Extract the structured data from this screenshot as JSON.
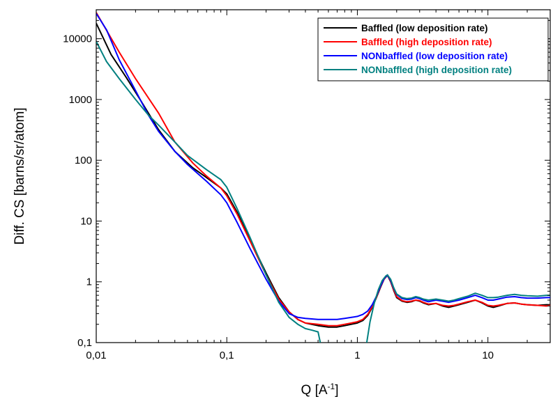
{
  "chart_data": {
    "type": "line",
    "title": "",
    "xlabel": "Q [A",
    "xlabel_sup": "-1",
    "xlabel_close": "]",
    "ylabel": "Diff. CS [barns/sr/atom]",
    "xscale": "log",
    "yscale": "log",
    "xlim": [
      0.01,
      30
    ],
    "ylim": [
      0.1,
      30000
    ],
    "grid": false,
    "legend_position": "top-right",
    "x_ticks": [
      {
        "value": 0.01,
        "label": "0,01"
      },
      {
        "value": 0.1,
        "label": "0,1"
      },
      {
        "value": 1,
        "label": "1"
      },
      {
        "value": 10,
        "label": "10"
      }
    ],
    "y_ticks": [
      {
        "value": 0.1,
        "label": "0,1"
      },
      {
        "value": 1,
        "label": "1"
      },
      {
        "value": 10,
        "label": "10"
      },
      {
        "value": 100,
        "label": "100"
      },
      {
        "value": 1000,
        "label": "1000"
      },
      {
        "value": 10000,
        "label": "10000"
      }
    ],
    "series": [
      {
        "name": "Baffled (low deposition rate)",
        "color": "#000000",
        "x": [
          0.01,
          0.013,
          0.017,
          0.022,
          0.03,
          0.04,
          0.055,
          0.07,
          0.09,
          0.1,
          0.12,
          0.15,
          0.2,
          0.25,
          0.3,
          0.35,
          0.4,
          0.5,
          0.6,
          0.7,
          0.8,
          0.9,
          1.0,
          1.1,
          1.2,
          1.3,
          1.4,
          1.5,
          1.6,
          1.7,
          1.8,
          1.9,
          2.0,
          2.2,
          2.4,
          2.6,
          2.8,
          3.0,
          3.2,
          3.5,
          4.0,
          4.5,
          5.0,
          5.5,
          6.0,
          7.0,
          8.0,
          9.0,
          10,
          11,
          12,
          14,
          16,
          18,
          20,
          24,
          28,
          30
        ],
        "y": [
          18000,
          5500,
          2300,
          950,
          320,
          140,
          75,
          52,
          35,
          28,
          14,
          5,
          1.4,
          0.55,
          0.32,
          0.24,
          0.21,
          0.19,
          0.18,
          0.18,
          0.19,
          0.2,
          0.21,
          0.23,
          0.28,
          0.38,
          0.55,
          0.8,
          1.1,
          1.28,
          1.0,
          0.72,
          0.55,
          0.48,
          0.46,
          0.47,
          0.5,
          0.48,
          0.45,
          0.42,
          0.44,
          0.4,
          0.38,
          0.4,
          0.42,
          0.46,
          0.5,
          0.45,
          0.4,
          0.38,
          0.4,
          0.44,
          0.45,
          0.43,
          0.42,
          0.41,
          0.42,
          0.42
        ]
      },
      {
        "name": "Baffled (high deposition rate)",
        "color": "#ff0000",
        "x": [
          0.01,
          0.015,
          0.02,
          0.03,
          0.04,
          0.055,
          0.07,
          0.09,
          0.1,
          0.12,
          0.15,
          0.2,
          0.25,
          0.3,
          0.35,
          0.4,
          0.5,
          0.6,
          0.7,
          0.8,
          0.9,
          1.0,
          1.1,
          1.2,
          1.3,
          1.4,
          1.5,
          1.6,
          1.7,
          1.8,
          1.9,
          2.0,
          2.2,
          2.4,
          2.6,
          2.8,
          3.0,
          3.2,
          3.5,
          4.0,
          4.5,
          5.0,
          5.5,
          6.0,
          7.0,
          8.0,
          9.0,
          10,
          11,
          12,
          14,
          16,
          18,
          20,
          24,
          28,
          30
        ],
        "y": [
          27000,
          6000,
          2200,
          600,
          200,
          90,
          55,
          35,
          26,
          13,
          4.8,
          1.3,
          0.52,
          0.32,
          0.24,
          0.21,
          0.2,
          0.19,
          0.19,
          0.2,
          0.21,
          0.22,
          0.24,
          0.29,
          0.39,
          0.56,
          0.82,
          1.1,
          1.3,
          1.02,
          0.74,
          0.57,
          0.49,
          0.47,
          0.48,
          0.5,
          0.49,
          0.46,
          0.43,
          0.44,
          0.41,
          0.4,
          0.41,
          0.43,
          0.47,
          0.5,
          0.46,
          0.41,
          0.4,
          0.41,
          0.44,
          0.45,
          0.43,
          0.42,
          0.41,
          0.4,
          0.41
        ]
      },
      {
        "name": "NONbaffled (low deposition rate)",
        "color": "#0000ff",
        "x": [
          0.01,
          0.012,
          0.015,
          0.02,
          0.025,
          0.03,
          0.04,
          0.05,
          0.07,
          0.09,
          0.1,
          0.12,
          0.15,
          0.2,
          0.25,
          0.3,
          0.35,
          0.4,
          0.5,
          0.6,
          0.7,
          0.8,
          0.9,
          1.0,
          1.1,
          1.2,
          1.3,
          1.4,
          1.5,
          1.6,
          1.7,
          1.8,
          1.9,
          2.0,
          2.2,
          2.4,
          2.6,
          2.8,
          3.0,
          3.2,
          3.5,
          4.0,
          4.5,
          5.0,
          5.5,
          6.0,
          7.0,
          8.0,
          9.0,
          10,
          11,
          12,
          14,
          16,
          18,
          20,
          24,
          28,
          30
        ],
        "y": [
          26000,
          14000,
          4500,
          1400,
          560,
          300,
          140,
          85,
          45,
          27,
          20,
          9.5,
          3.6,
          1.1,
          0.48,
          0.3,
          0.26,
          0.25,
          0.24,
          0.24,
          0.24,
          0.25,
          0.26,
          0.27,
          0.29,
          0.33,
          0.42,
          0.58,
          0.84,
          1.12,
          1.3,
          1.05,
          0.78,
          0.62,
          0.53,
          0.51,
          0.52,
          0.55,
          0.53,
          0.5,
          0.47,
          0.5,
          0.48,
          0.46,
          0.48,
          0.5,
          0.55,
          0.6,
          0.55,
          0.5,
          0.5,
          0.52,
          0.56,
          0.57,
          0.55,
          0.54,
          0.54,
          0.55,
          0.55
        ]
      },
      {
        "name": "NONbaffled (high deposition rate)",
        "color": "#008080",
        "x": [
          0.01,
          0.012,
          0.015,
          0.02,
          0.025,
          0.03,
          0.04,
          0.05,
          0.07,
          0.09,
          0.1,
          0.12,
          0.15,
          0.2,
          0.25,
          0.3,
          0.35,
          0.4,
          0.45,
          0.5,
          0.52,
          null,
          1.18,
          1.25,
          1.35,
          1.45,
          1.55,
          1.65,
          1.7,
          1.8,
          1.9,
          2.0,
          2.2,
          2.4,
          2.6,
          2.8,
          3.0,
          3.2,
          3.5,
          4.0,
          4.5,
          5.0,
          5.5,
          6.0,
          7.0,
          8.0,
          9.0,
          10,
          11,
          12,
          14,
          16,
          18,
          20,
          24,
          28,
          30
        ],
        "y": [
          9000,
          4200,
          2200,
          1000,
          560,
          380,
          200,
          120,
          70,
          48,
          36,
          16,
          5.5,
          1.3,
          0.46,
          0.26,
          0.2,
          0.17,
          0.16,
          0.15,
          0.1,
          null,
          0.1,
          0.22,
          0.45,
          0.75,
          1.05,
          1.25,
          1.3,
          1.1,
          0.8,
          0.63,
          0.55,
          0.53,
          0.54,
          0.57,
          0.55,
          0.52,
          0.5,
          0.52,
          0.5,
          0.48,
          0.5,
          0.53,
          0.58,
          0.65,
          0.6,
          0.55,
          0.55,
          0.56,
          0.6,
          0.62,
          0.6,
          0.59,
          0.58,
          0.6,
          0.6
        ]
      }
    ]
  }
}
